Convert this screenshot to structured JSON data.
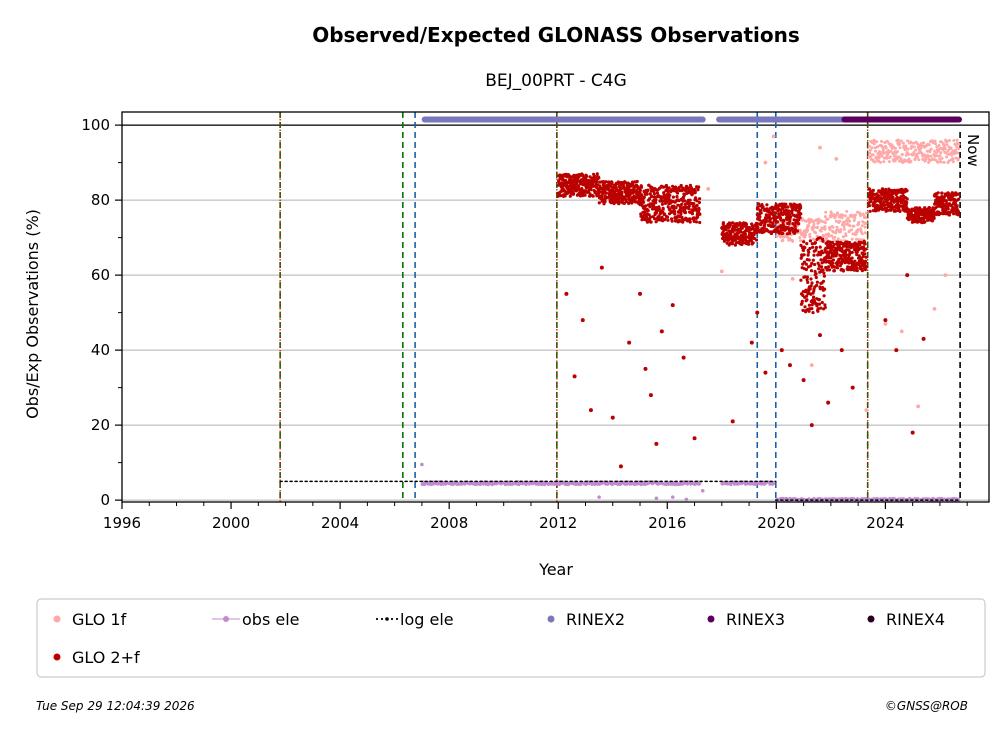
{
  "chart_data": {
    "type": "scatter",
    "title": "Observed/Expected GLONASS Observations",
    "subtitle": "BEJ_00PRT - C4G",
    "xlabel": "Year",
    "ylabel": "Obs/Exp Observations (%)",
    "xlim": [
      1996,
      2027.8
    ],
    "ylim": [
      -0.5,
      103.5
    ],
    "xticks": [
      1996,
      2000,
      2004,
      2008,
      2012,
      2016,
      2020,
      2024
    ],
    "yticks": [
      0,
      20,
      40,
      60,
      80,
      100
    ],
    "grid": "y",
    "now_label": "Now",
    "now_x": 2026.74,
    "vlines_green": [
      2001.8,
      2006.3,
      2011.95,
      2023.35
    ],
    "vlines_blue": [
      2006.75,
      2019.3,
      2019.98
    ],
    "vlines_red": [
      2001.8,
      2011.95,
      2023.35
    ],
    "legend": {
      "placement": "below",
      "entries": [
        {
          "label": "GLO 1f",
          "color": "#ffa8a8",
          "kind": "dot"
        },
        {
          "label": "obs ele",
          "color": "#c08bd0",
          "kind": "line-dot"
        },
        {
          "label": "log ele",
          "color": "#000000",
          "kind": "dotted-line"
        },
        {
          "label": "RINEX2",
          "color": "#7a78bd",
          "kind": "dot"
        },
        {
          "label": "RINEX3",
          "color": "#5c005c",
          "kind": "dot"
        },
        {
          "label": "RINEX4",
          "color": "#2a0020",
          "kind": "dot"
        },
        {
          "label": "GLO 2+f",
          "color": "#bb0000",
          "kind": "dot"
        }
      ]
    },
    "series": [
      {
        "name": "GLO 2+f",
        "color": "#bb0000",
        "segments": [
          {
            "x_start": 2012.0,
            "x_end": 2013.5,
            "level": 84,
            "spread": 3
          },
          {
            "x_start": 2013.5,
            "x_end": 2015.0,
            "level": 82,
            "spread": 3
          },
          {
            "x_start": 2015.0,
            "x_end": 2017.2,
            "level": 79,
            "spread": 5
          },
          {
            "x_start": 2018.0,
            "x_end": 2019.3,
            "level": 71,
            "spread": 3
          },
          {
            "x_start": 2019.3,
            "x_end": 2020.9,
            "level": 75,
            "spread": 4
          },
          {
            "x_start": 2020.9,
            "x_end": 2021.8,
            "level": 60,
            "spread": 10
          },
          {
            "x_start": 2021.8,
            "x_end": 2023.3,
            "level": 65,
            "spread": 4
          },
          {
            "x_start": 2023.4,
            "x_end": 2024.8,
            "level": 80,
            "spread": 3
          },
          {
            "x_start": 2024.8,
            "x_end": 2025.8,
            "level": 76,
            "spread": 2
          },
          {
            "x_start": 2025.8,
            "x_end": 2026.7,
            "level": 79,
            "spread": 3
          }
        ],
        "outliers": [
          [
            2012.3,
            55
          ],
          [
            2012.6,
            33
          ],
          [
            2012.9,
            48
          ],
          [
            2013.2,
            24
          ],
          [
            2013.6,
            62
          ],
          [
            2014.0,
            22
          ],
          [
            2014.3,
            9
          ],
          [
            2014.6,
            42
          ],
          [
            2015.0,
            55
          ],
          [
            2015.2,
            35
          ],
          [
            2015.4,
            28
          ],
          [
            2015.6,
            15
          ],
          [
            2015.8,
            45
          ],
          [
            2016.2,
            52
          ],
          [
            2016.6,
            38
          ],
          [
            2017.0,
            16.5
          ],
          [
            2018.4,
            21
          ],
          [
            2019.1,
            42
          ],
          [
            2019.3,
            50
          ],
          [
            2019.6,
            34
          ],
          [
            2020.2,
            40
          ],
          [
            2020.5,
            36
          ],
          [
            2021.0,
            32
          ],
          [
            2021.3,
            20
          ],
          [
            2021.6,
            44
          ],
          [
            2021.9,
            26
          ],
          [
            2022.4,
            40
          ],
          [
            2022.8,
            30
          ],
          [
            2024.0,
            48
          ],
          [
            2024.4,
            40
          ],
          [
            2024.8,
            60
          ],
          [
            2025.0,
            18
          ],
          [
            2025.4,
            43
          ]
        ]
      },
      {
        "name": "GLO 1f",
        "color": "#ffa8a8",
        "segments": [
          {
            "x_start": 2020.0,
            "x_end": 2021.8,
            "level": 72,
            "spread": 3
          },
          {
            "x_start": 2021.8,
            "x_end": 2023.3,
            "level": 73,
            "spread": 4
          },
          {
            "x_start": 2023.4,
            "x_end": 2026.7,
            "level": 93,
            "spread": 3
          }
        ],
        "outliers": [
          [
            2017.5,
            83
          ],
          [
            2018.0,
            61
          ],
          [
            2018.4,
            21
          ],
          [
            2019.6,
            90
          ],
          [
            2019.9,
            97
          ],
          [
            2020.6,
            59
          ],
          [
            2021.3,
            36
          ],
          [
            2021.6,
            94
          ],
          [
            2022.2,
            91
          ],
          [
            2023.3,
            24
          ],
          [
            2024.0,
            47
          ],
          [
            2024.6,
            45
          ],
          [
            2025.2,
            25
          ],
          [
            2025.8,
            51
          ],
          [
            2026.2,
            60
          ]
        ]
      },
      {
        "name": "obs ele",
        "color": "#c08bd0",
        "segments": [
          {
            "x_start": 2007.0,
            "x_end": 2017.2,
            "level": 4.5,
            "spread": 0.4
          },
          {
            "x_start": 2018.0,
            "x_end": 2019.9,
            "level": 4.5,
            "spread": 0.4
          },
          {
            "x_start": 2020.0,
            "x_end": 2026.7,
            "level": 0.2,
            "spread": 0.3
          }
        ],
        "outliers": [
          [
            2007.0,
            9.5
          ],
          [
            2013.5,
            0.8
          ],
          [
            2015.6,
            0.5
          ],
          [
            2016.2,
            0.8
          ],
          [
            2016.7,
            0.2
          ],
          [
            2017.3,
            2.5
          ]
        ]
      },
      {
        "name": "log ele",
        "color": "#000000",
        "lines": [
          {
            "x_start": 2001.8,
            "x_end": 2019.98,
            "y": 5
          },
          {
            "x_start": 2019.98,
            "x_end": 2026.74,
            "y": 0
          }
        ]
      },
      {
        "name": "RINEX2",
        "color": "#7a78bd",
        "lines": [
          {
            "x_start": 2007.1,
            "x_end": 2017.3,
            "y": 101.5
          },
          {
            "x_start": 2017.9,
            "x_end": 2018.05,
            "y": 101.5
          },
          {
            "x_start": 2018.1,
            "x_end": 2022.5,
            "y": 101.5
          }
        ]
      },
      {
        "name": "RINEX3",
        "color": "#5c005c",
        "lines": [
          {
            "x_start": 2022.5,
            "x_end": 2026.7,
            "y": 101.5
          }
        ]
      }
    ]
  },
  "footer": {
    "left": "Tue Sep 29 12:04:39 2026",
    "right": "©GNSS@ROB"
  }
}
